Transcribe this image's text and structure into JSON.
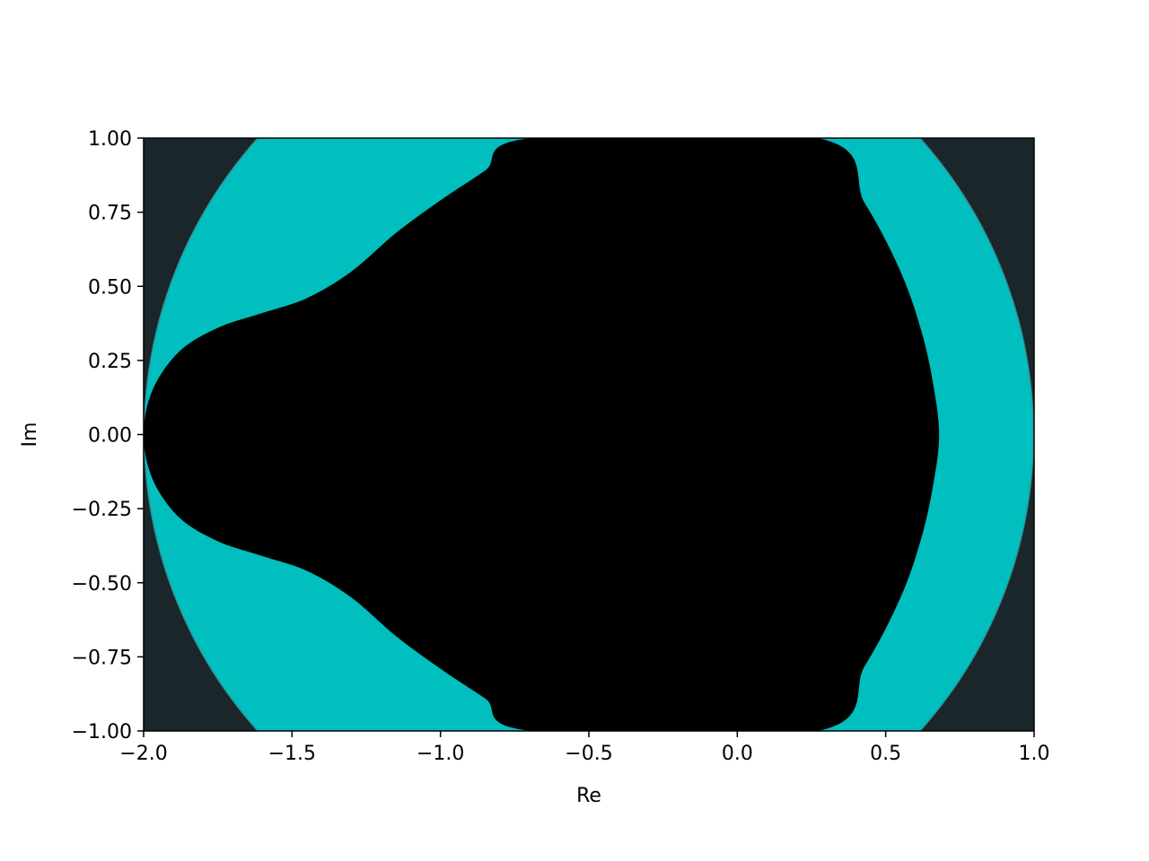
{
  "chart_data": {
    "type": "heatmap",
    "title": "",
    "xlabel": "Re",
    "ylabel": "Im",
    "xlim": [
      -2.0,
      1.0
    ],
    "ylim": [
      -1.0,
      1.0
    ],
    "x_ticks": [
      -2.0,
      -1.5,
      -1.0,
      -0.5,
      0.0,
      0.5,
      1.0
    ],
    "x_tick_labels": [
      "−2.0",
      "−1.5",
      "−1.0",
      "−0.5",
      "0.0",
      "0.5",
      "1.0"
    ],
    "y_ticks": [
      1.0,
      0.75,
      0.5,
      0.25,
      0.0,
      -0.25,
      -0.5,
      -0.75,
      -1.0
    ],
    "y_tick_labels": [
      "1.00",
      "0.75",
      "0.50",
      "0.25",
      "0.00",
      "−0.25",
      "−0.50",
      "−0.75",
      "−1.00"
    ],
    "regions": [
      {
        "fill": "#1a2629"
      },
      {
        "fill": "#368a91",
        "shape": "circle",
        "center": [
          -0.5,
          0.0
        ],
        "radius": 1.5
      },
      {
        "fill": "#00bfbe",
        "shape": "circle",
        "center": [
          -0.5,
          0.0
        ],
        "radius": 1.5,
        "inset": 0.004
      },
      {
        "fill": "#000000",
        "shape": "stability-region",
        "boundary": [
          [
            -2.0,
            0.0
          ],
          [
            -1.97,
            0.15
          ],
          [
            -1.88,
            0.28
          ],
          [
            -1.75,
            0.36
          ],
          [
            -1.6,
            0.41
          ],
          [
            -1.45,
            0.46
          ],
          [
            -1.3,
            0.55
          ],
          [
            -1.15,
            0.68
          ],
          [
            -1.0,
            0.79
          ],
          [
            -0.85,
            0.89
          ],
          [
            -0.69,
            1.0
          ],
          [
            0.27,
            1.0
          ],
          [
            0.43,
            0.78
          ],
          [
            0.55,
            0.55
          ],
          [
            0.62,
            0.35
          ],
          [
            0.66,
            0.17
          ],
          [
            0.68,
            0.0
          ],
          [
            0.66,
            -0.17
          ],
          [
            0.62,
            -0.35
          ],
          [
            0.55,
            -0.55
          ],
          [
            0.43,
            -0.78
          ],
          [
            0.27,
            -1.0
          ],
          [
            -0.69,
            -1.0
          ],
          [
            -0.85,
            -0.89
          ],
          [
            -1.0,
            -0.79
          ],
          [
            -1.15,
            -0.68
          ],
          [
            -1.3,
            -0.55
          ],
          [
            -1.45,
            -0.46
          ],
          [
            -1.6,
            -0.41
          ],
          [
            -1.75,
            -0.36
          ],
          [
            -1.88,
            -0.28
          ],
          [
            -1.97,
            -0.15
          ]
        ]
      }
    ],
    "grid": false,
    "legend": "none"
  }
}
